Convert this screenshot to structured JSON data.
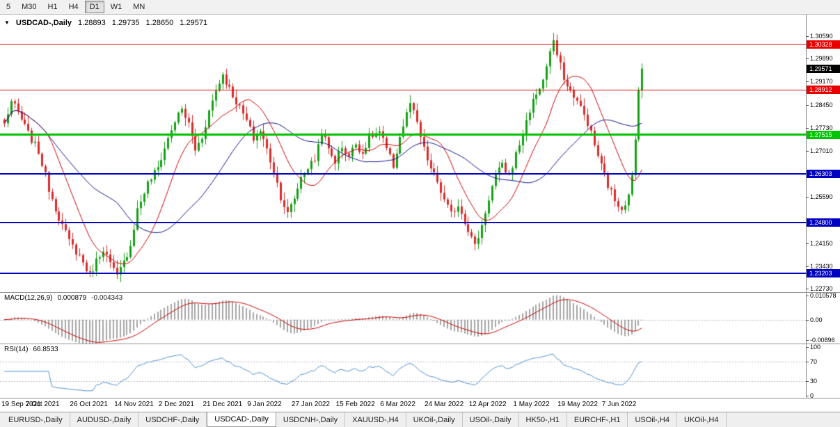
{
  "toolbar": {
    "timeframes": [
      {
        "label": "5",
        "active": false
      },
      {
        "label": "M30",
        "active": false
      },
      {
        "label": "H1",
        "active": false
      },
      {
        "label": "H4",
        "active": false
      },
      {
        "label": "D1",
        "active": true
      },
      {
        "label": "W1",
        "active": false
      },
      {
        "label": "MN",
        "active": false
      }
    ]
  },
  "chart": {
    "title": {
      "symbol": "USDCAD-,Daily",
      "open": "1.28893",
      "high": "1.29735",
      "low": "1.28650",
      "close": "1.29571"
    },
    "current_price": {
      "label": "1.29571",
      "value": 1.29571,
      "color": "#000000"
    },
    "levels": [
      {
        "label": "1.30328",
        "value": 1.30328,
        "color": "#e80000",
        "width": 1
      },
      {
        "label": "1.28912",
        "value": 1.28912,
        "color": "#e80000",
        "width": 1
      },
      {
        "label": "1.27515",
        "value": 1.27515,
        "color": "#00c400",
        "width": 3
      },
      {
        "label": "1.26303",
        "value": 1.26303,
        "color": "#0000c0",
        "width": 2
      },
      {
        "label": "1.24800",
        "value": 1.248,
        "color": "#0000c0",
        "width": 2
      },
      {
        "label": "1.23203",
        "value": 1.23203,
        "color": "#0000c0",
        "width": 2
      }
    ],
    "price_axis_ticks": [
      {
        "label": "1.30590",
        "value": 1.3059
      },
      {
        "label": "1.29890",
        "value": 1.2989
      },
      {
        "label": "1.29170",
        "value": 1.2917
      },
      {
        "label": "1.28450",
        "value": 1.2845
      },
      {
        "label": "1.27730",
        "value": 1.2773
      },
      {
        "label": "1.27010",
        "value": 1.2701
      },
      {
        "label": "1.25590",
        "value": 1.2559
      },
      {
        "label": "1.24150",
        "value": 1.2415
      },
      {
        "label": "1.23430",
        "value": 1.2343
      },
      {
        "label": "1.22730",
        "value": 1.2273
      }
    ],
    "colors": {
      "up": "#16a016",
      "down": "#d92b2b",
      "ma_fast": "#cc0000",
      "ma_slow": "#14148c",
      "macd_hist": "#a6a6a6",
      "macd_signal": "#cc0000",
      "rsi_line": "#4f8fd0"
    }
  },
  "macd": {
    "name": "MACD(12,26,9)",
    "value": "0.000879",
    "signal_value": "-0.004343",
    "axis": [
      {
        "label": "0.010578",
        "value": 0.010578
      },
      {
        "label": "0.00",
        "value": 0
      },
      {
        "label": "-0.00896",
        "value": -0.00896
      }
    ],
    "range": {
      "min": -0.0105,
      "max": 0.0118
    }
  },
  "rsi": {
    "name": "RSI(14)",
    "value": "66.8533",
    "axis": [
      {
        "label": "100",
        "value": 100
      },
      {
        "label": "70",
        "value": 70
      },
      {
        "label": "30",
        "value": 30
      },
      {
        "label": "0",
        "value": 0
      }
    ],
    "levels": [
      70,
      30
    ],
    "range": {
      "min": 0,
      "max": 100
    }
  },
  "time_axis": [
    {
      "label": "19 Sep 2021",
      "index": 0
    },
    {
      "label": "7 Oct 2021",
      "index": 13
    },
    {
      "label": "26 Oct 2021",
      "index": 26
    },
    {
      "label": "14 Nov 2021",
      "index": 39
    },
    {
      "label": "2 Dec 2021",
      "index": 52
    },
    {
      "label": "21 Dec 2021",
      "index": 65
    },
    {
      "label": "9 Jan 2022",
      "index": 78
    },
    {
      "label": "27 Jan 2022",
      "index": 91
    },
    {
      "label": "15 Feb 2022",
      "index": 104
    },
    {
      "label": "6 Mar 2022",
      "index": 117
    },
    {
      "label": "24 Mar 2022",
      "index": 130
    },
    {
      "label": "12 Apr 2022",
      "index": 143
    },
    {
      "label": "1 May 2022",
      "index": 156
    },
    {
      "label": "19 May 2022",
      "index": 169
    },
    {
      "label": "7 Jun 2022",
      "index": 182
    }
  ],
  "tabs": [
    {
      "label": "EURUSD-,Daily",
      "active": false
    },
    {
      "label": "AUDUSD-,Daily",
      "active": false
    },
    {
      "label": "USDCHF-,Daily",
      "active": false
    },
    {
      "label": "USDCAD-,Daily",
      "active": true
    },
    {
      "label": "USDCNH-,Daily",
      "active": false
    },
    {
      "label": "XAUUSD-,H4",
      "active": false
    },
    {
      "label": "UKOil-,Daily",
      "active": false
    },
    {
      "label": "USOil-,Daily",
      "active": false
    },
    {
      "label": "HK50-,H1",
      "active": false
    },
    {
      "label": "EURCHF-,H1",
      "active": false
    },
    {
      "label": "USOil-,H4",
      "active": false
    },
    {
      "label": "UKOil-,H4",
      "active": false
    }
  ],
  "chart_data": {
    "type": "candlestick",
    "symbol": "USDCAD",
    "timeframe": "Daily",
    "candle_count": 188,
    "price_range": {
      "min": 1.2263,
      "max": 1.3125
    },
    "ma_periods": {
      "fast": 13,
      "slow": 34
    },
    "last_candle": {
      "open": 1.28893,
      "high": 1.29735,
      "low": 1.2865,
      "close": 1.29571
    },
    "price_anchors": [
      [
        0,
        1.2785
      ],
      [
        2,
        1.2855
      ],
      [
        4,
        1.282
      ],
      [
        7,
        1.2755
      ],
      [
        10,
        1.27
      ],
      [
        13,
        1.2585
      ],
      [
        16,
        1.2495
      ],
      [
        19,
        1.242
      ],
      [
        22,
        1.2375
      ],
      [
        25,
        1.2315
      ],
      [
        27,
        1.236
      ],
      [
        29,
        1.24
      ],
      [
        31,
        1.235
      ],
      [
        33,
        1.231
      ],
      [
        35,
        1.2355
      ],
      [
        37,
        1.241
      ],
      [
        39,
        1.252
      ],
      [
        42,
        1.26
      ],
      [
        45,
        1.265
      ],
      [
        48,
        1.274
      ],
      [
        50,
        1.2795
      ],
      [
        52,
        1.283
      ],
      [
        54,
        1.2785
      ],
      [
        56,
        1.2705
      ],
      [
        58,
        1.2745
      ],
      [
        60,
        1.2825
      ],
      [
        62,
        1.289
      ],
      [
        64,
        1.294
      ],
      [
        66,
        1.2895
      ],
      [
        68,
        1.2855
      ],
      [
        71,
        1.2795
      ],
      [
        73,
        1.274
      ],
      [
        75,
        1.2765
      ],
      [
        77,
        1.2705
      ],
      [
        79,
        1.264
      ],
      [
        81,
        1.256
      ],
      [
        83,
        1.2505
      ],
      [
        85,
        1.2555
      ],
      [
        87,
        1.262
      ],
      [
        89,
        1.265
      ],
      [
        91,
        1.2675
      ],
      [
        93,
        1.2765
      ],
      [
        95,
        1.2705
      ],
      [
        97,
        1.267
      ],
      [
        99,
        1.2715
      ],
      [
        101,
        1.2685
      ],
      [
        103,
        1.2725
      ],
      [
        105,
        1.2695
      ],
      [
        107,
        1.2745
      ],
      [
        110,
        1.276
      ],
      [
        112,
        1.2705
      ],
      [
        114,
        1.2655
      ],
      [
        116,
        1.2745
      ],
      [
        119,
        1.285
      ],
      [
        121,
        1.2785
      ],
      [
        123,
        1.2705
      ],
      [
        125,
        1.2645
      ],
      [
        127,
        1.2605
      ],
      [
        129,
        1.2545
      ],
      [
        131,
        1.2505
      ],
      [
        133,
        1.2535
      ],
      [
        135,
        1.2485
      ],
      [
        138,
        1.2405
      ],
      [
        140,
        1.247
      ],
      [
        142,
        1.2555
      ],
      [
        144,
        1.2625
      ],
      [
        146,
        1.2655
      ],
      [
        148,
        1.2625
      ],
      [
        150,
        1.269
      ],
      [
        152,
        1.2755
      ],
      [
        154,
        1.283
      ],
      [
        156,
        1.288
      ],
      [
        158,
        1.292
      ],
      [
        160,
        1.301
      ],
      [
        161,
        1.3035
      ],
      [
        163,
        1.2965
      ],
      [
        165,
        1.29
      ],
      [
        167,
        1.2875
      ],
      [
        169,
        1.2835
      ],
      [
        171,
        1.279
      ],
      [
        173,
        1.272
      ],
      [
        175,
        1.2655
      ],
      [
        177,
        1.2595
      ],
      [
        179,
        1.255
      ],
      [
        181,
        1.2525
      ],
      [
        183,
        1.256
      ],
      [
        184,
        1.262
      ],
      [
        185,
        1.2735
      ],
      [
        186,
        1.28893
      ],
      [
        187,
        1.29571
      ]
    ]
  }
}
